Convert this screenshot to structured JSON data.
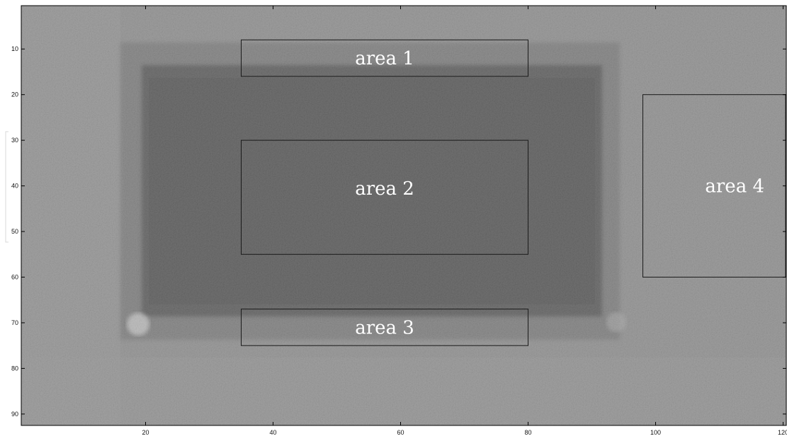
{
  "figure": {
    "x_ticks": [
      20,
      40,
      60,
      80,
      100,
      120
    ],
    "y_ticks": [
      10,
      20,
      30,
      40,
      50,
      60,
      70,
      80,
      90
    ],
    "x_range": [
      0.5,
      120.5
    ],
    "y_range": [
      0.5,
      92.5
    ],
    "colormap": "gray"
  },
  "image": {
    "background_level": 0.56,
    "dark_rect_level": 0.36,
    "noise": "fine grayscale pixel noise"
  },
  "regions": [
    {
      "label": "area 1",
      "x": [
        35,
        80
      ],
      "y": [
        8,
        16
      ]
    },
    {
      "label": "area 2",
      "x": [
        35,
        80
      ],
      "y": [
        30,
        55
      ]
    },
    {
      "label": "area 3",
      "x": [
        35,
        80
      ],
      "y": [
        67,
        75
      ]
    },
    {
      "label": "area 4",
      "x": [
        98,
        121
      ],
      "y": [
        20,
        60
      ]
    }
  ],
  "colors": {
    "box_stroke": "#1a1a1a",
    "label_text": "#ffffff",
    "axis": "#000000"
  }
}
